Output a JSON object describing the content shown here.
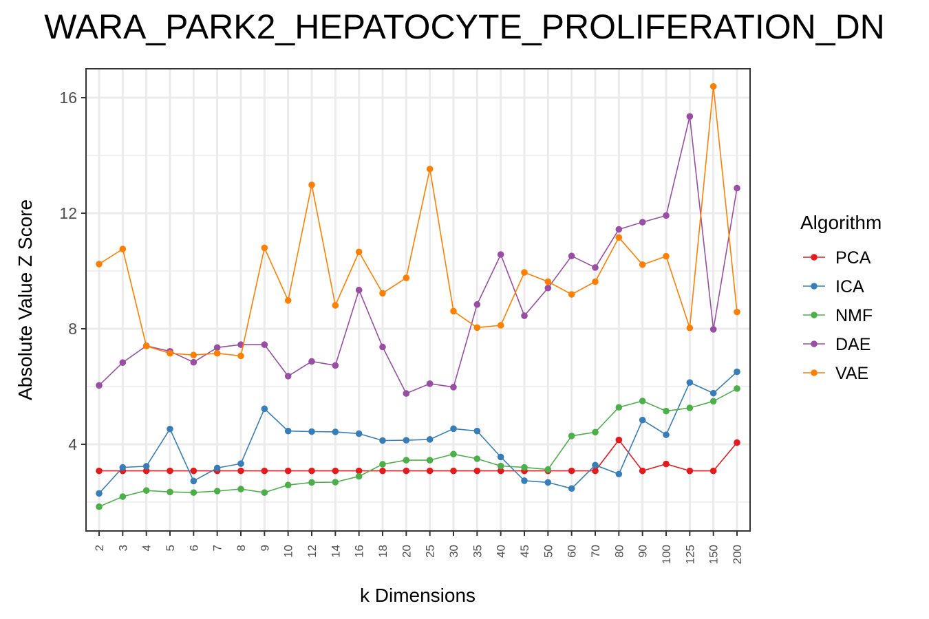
{
  "chart_data": {
    "type": "line",
    "title": "WARA_PARK2_HEPATOCYTE_PROLIFERATION_DN",
    "xlabel": "k Dimensions",
    "ylabel": "Absolute Value Z Score",
    "categories": [
      "2",
      "3",
      "4",
      "5",
      "6",
      "7",
      "8",
      "9",
      "10",
      "12",
      "14",
      "16",
      "18",
      "20",
      "25",
      "30",
      "35",
      "40",
      "45",
      "50",
      "60",
      "70",
      "80",
      "90",
      "100",
      "125",
      "150",
      "200"
    ],
    "ylim": [
      1.0,
      17.0
    ],
    "yticks": [
      4,
      8,
      12,
      16
    ],
    "grid": true,
    "legend": {
      "title": "Algorithm",
      "position": "right"
    },
    "series": [
      {
        "name": "PCA",
        "color": "#e41a1c",
        "values": [
          3.08,
          3.08,
          3.08,
          3.08,
          3.08,
          3.08,
          3.08,
          3.08,
          3.08,
          3.08,
          3.08,
          3.08,
          3.08,
          3.08,
          3.08,
          3.08,
          3.08,
          3.08,
          3.08,
          3.08,
          3.08,
          3.08,
          4.15,
          3.08,
          3.32,
          3.08,
          3.08,
          4.06
        ]
      },
      {
        "name": "ICA",
        "color": "#377eb8",
        "values": [
          2.3,
          3.2,
          3.24,
          4.53,
          2.73,
          3.18,
          3.33,
          5.23,
          4.46,
          4.44,
          4.43,
          4.37,
          4.13,
          4.14,
          4.17,
          4.54,
          4.46,
          3.56,
          2.74,
          2.68,
          2.47,
          3.28,
          2.97,
          4.84,
          4.33,
          6.14,
          5.77,
          6.51
        ]
      },
      {
        "name": "NMF",
        "color": "#4daf4a",
        "values": [
          1.84,
          2.19,
          2.4,
          2.35,
          2.33,
          2.38,
          2.45,
          2.33,
          2.59,
          2.68,
          2.69,
          2.89,
          3.31,
          3.45,
          3.45,
          3.66,
          3.5,
          3.25,
          3.2,
          3.13,
          4.29,
          4.42,
          5.28,
          5.5,
          5.15,
          5.26,
          5.49,
          5.93
        ]
      },
      {
        "name": "DAE",
        "color": "#984ea3",
        "values": [
          6.04,
          6.83,
          7.41,
          7.22,
          6.84,
          7.35,
          7.45,
          7.45,
          6.36,
          6.87,
          6.73,
          9.34,
          7.37,
          5.76,
          6.1,
          5.98,
          8.84,
          10.57,
          8.45,
          9.41,
          10.52,
          10.12,
          11.44,
          11.69,
          11.92,
          15.35,
          7.98,
          12.87
        ]
      },
      {
        "name": "VAE",
        "color": "#ff7f00",
        "values": [
          10.24,
          10.76,
          7.4,
          7.15,
          7.09,
          7.15,
          7.06,
          10.8,
          8.98,
          12.98,
          8.81,
          10.66,
          9.23,
          9.76,
          13.53,
          8.61,
          8.04,
          8.12,
          9.95,
          9.63,
          9.19,
          9.63,
          11.16,
          10.22,
          10.51,
          8.03,
          16.39,
          8.58
        ]
      }
    ]
  }
}
